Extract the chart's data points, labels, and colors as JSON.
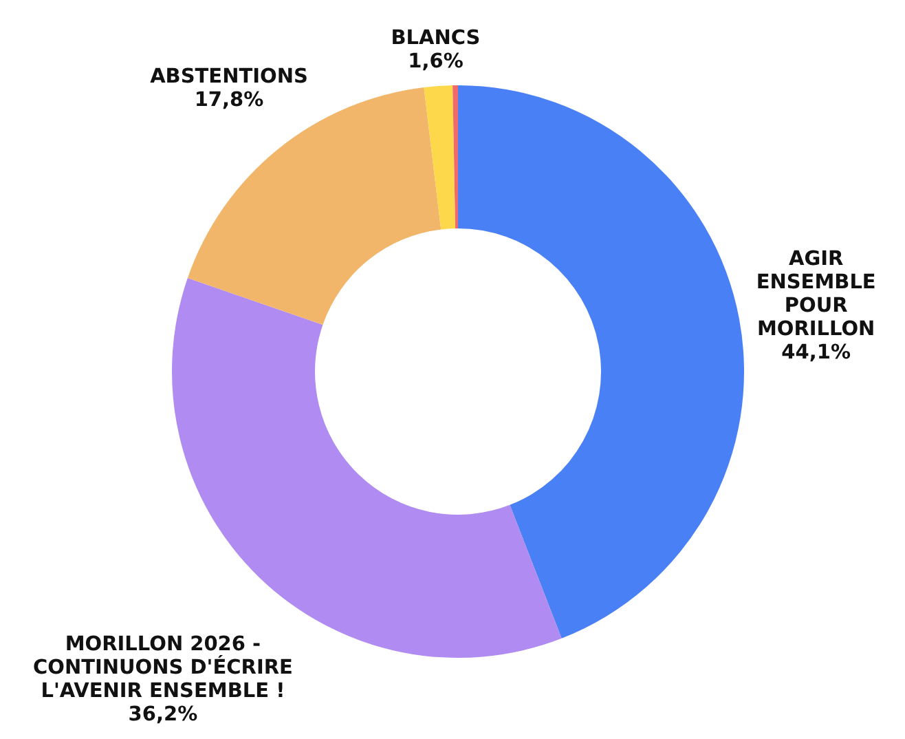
{
  "chart_data": {
    "type": "donut",
    "categories": [
      "AGIR ENSEMBLE POUR MORILLON",
      "MORILLON 2026 - CONTINUONS D'ÉCRIRE L'AVENIR ENSEMBLE !",
      "ABSTENTIONS",
      "BLANCS",
      null
    ],
    "values": [
      44.1,
      36.2,
      17.8,
      1.6,
      0.3
    ],
    "value_labels": [
      "44,1%",
      "36,2%",
      "17,8%",
      "1,6%",
      null
    ],
    "colors": [
      "#4a80f5",
      "#b08cf2",
      "#f2b66b",
      "#fcd84a",
      "#f06a6a"
    ]
  }
}
